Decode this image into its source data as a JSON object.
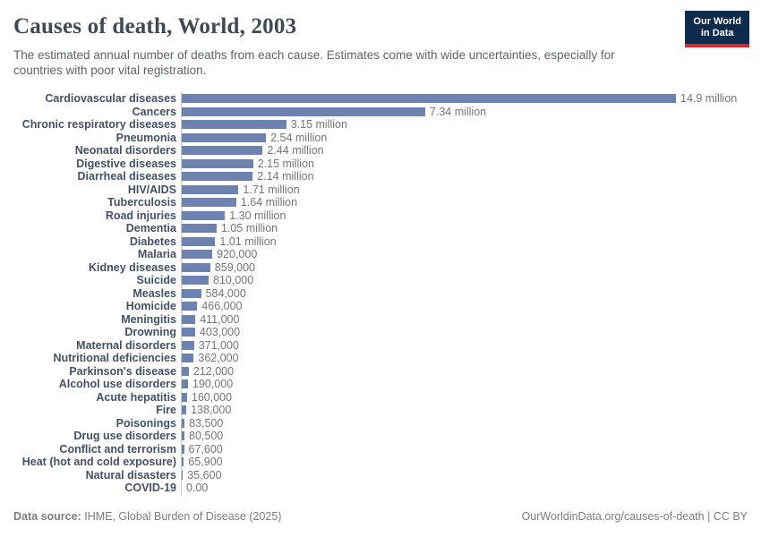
{
  "header": {
    "title": "Causes of death, World, 2003",
    "subtitle": "The estimated annual number of deaths from each cause. Estimates come with wide uncertainties, especially for countries with poor vital registration.",
    "logo": {
      "line1": "Our World",
      "line2": "in Data",
      "bg_color": "#0e2a4d",
      "accent_color": "#d4282c"
    }
  },
  "chart_data": {
    "type": "bar",
    "orientation": "horizontal",
    "title": "Causes of death, World, 2003",
    "xlabel": "",
    "ylabel": "",
    "xlim": [
      0,
      14900000
    ],
    "grid": false,
    "legend": "none",
    "bar_color": "#6e82af",
    "categories": [
      "Cardiovascular diseases",
      "Cancers",
      "Chronic respiratory diseases",
      "Pneumonia",
      "Neonatal disorders",
      "Digestive diseases",
      "Diarrheal diseases",
      "HIV/AIDS",
      "Tuberculosis",
      "Road injuries",
      "Dementia",
      "Diabetes",
      "Malaria",
      "Kidney diseases",
      "Suicide",
      "Measles",
      "Homicide",
      "Meningitis",
      "Drowning",
      "Maternal disorders",
      "Nutritional deficiencies",
      "Parkinson's disease",
      "Alcohol use disorders",
      "Acute hepatitis",
      "Fire",
      "Poisonings",
      "Drug use disorders",
      "Conflict and terrorism",
      "Heat (hot and cold exposure)",
      "Natural disasters",
      "COVID-19"
    ],
    "values": [
      14900000,
      7340000,
      3150000,
      2540000,
      2440000,
      2150000,
      2140000,
      1710000,
      1640000,
      1300000,
      1050000,
      1010000,
      920000,
      859000,
      810000,
      584000,
      466000,
      411000,
      403000,
      371000,
      362000,
      212000,
      190000,
      160000,
      138000,
      83500,
      80500,
      67600,
      65900,
      35600,
      0
    ],
    "value_labels": [
      "14.9 million",
      "7.34 million",
      "3.15 million",
      "2.54 million",
      "2.44 million",
      "2.15 million",
      "2.14 million",
      "1.71 million",
      "1.64 million",
      "1.30 million",
      "1.05 million",
      "1.01 million",
      "920,000",
      "859,000",
      "810,000",
      "584,000",
      "466,000",
      "411,000",
      "403,000",
      "371,000",
      "362,000",
      "212,000",
      "190,000",
      "160,000",
      "138,000",
      "83,500",
      "80,500",
      "67,600",
      "65,900",
      "35,600",
      "0.00"
    ]
  },
  "footer": {
    "datasource_label": "Data source:",
    "datasource_value": "IHME, Global Burden of Disease (2025)",
    "attribution": "OurWorldinData.org/causes-of-death | CC BY"
  }
}
